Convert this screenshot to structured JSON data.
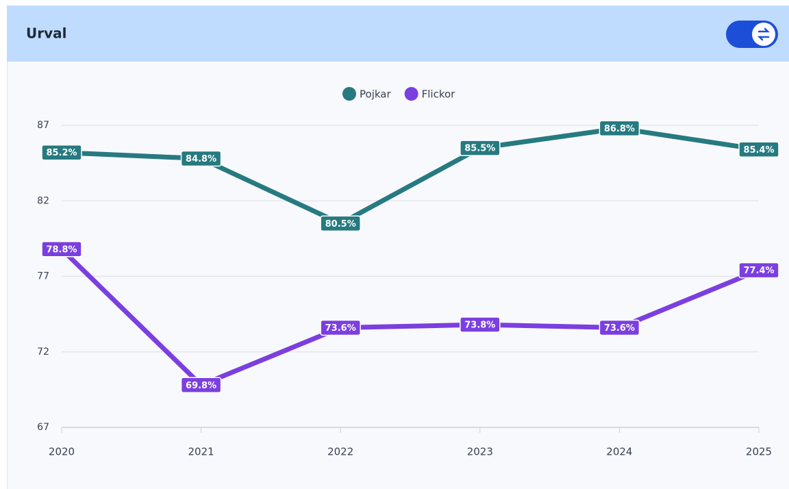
{
  "header": {
    "title": "Urval"
  },
  "chart_data": {
    "type": "line",
    "categories": [
      "2020",
      "2021",
      "2022",
      "2023",
      "2024",
      "2025"
    ],
    "series": [
      {
        "name": "Pojkar",
        "color": "#267a80",
        "values": [
          85.2,
          84.8,
          80.5,
          85.5,
          86.8,
          85.4
        ],
        "value_labels": [
          "85.2%",
          "84.8%",
          "80.5%",
          "85.5%",
          "86.8%",
          "85.4%"
        ]
      },
      {
        "name": "Flickor",
        "color": "#7b3fe0",
        "values": [
          78.8,
          69.8,
          73.6,
          73.8,
          73.6,
          77.4
        ],
        "value_labels": [
          "78.8%",
          "69.8%",
          "73.6%",
          "73.8%",
          "73.6%",
          "77.4%"
        ]
      }
    ],
    "ylim": [
      67,
      87
    ],
    "yticks": [
      67,
      72,
      77,
      82,
      87
    ],
    "grid": true,
    "legend": "top"
  }
}
